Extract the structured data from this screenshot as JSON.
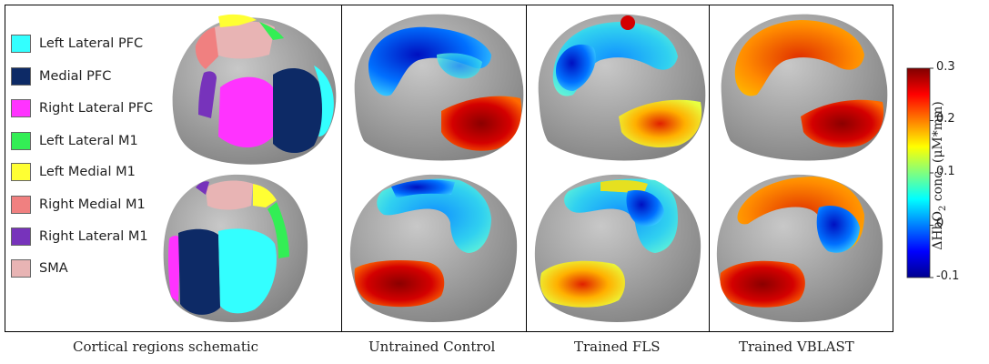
{
  "legend": {
    "items": [
      {
        "label": "Left Lateral PFC",
        "color": "#33ffff"
      },
      {
        "label": "Medial PFC",
        "color": "#0d2a66"
      },
      {
        "label": "Right Lateral PFC",
        "color": "#ff33ff"
      },
      {
        "label": "Left Lateral M1",
        "color": "#33ee55"
      },
      {
        "label": "Left Medial M1",
        "color": "#ffff33"
      },
      {
        "label": "Right Medial M1",
        "color": "#f08080"
      },
      {
        "label": "Right Lateral M1",
        "color": "#7733bb"
      },
      {
        "label": "SMA",
        "color": "#e8b4b4"
      }
    ]
  },
  "captions": {
    "schematic": "Cortical regions schematic",
    "untrained": "Untrained Control",
    "fls": "Trained FLS",
    "vblast": "Trained VBLAST"
  },
  "colorbar": {
    "label_prefix": "ΔHbO",
    "label_sub": "2",
    "label_suffix": " conc. (μM*mm)",
    "ticks": [
      "0.3",
      "0.2",
      "0.1",
      "0",
      "-0.1"
    ],
    "range": [
      -0.1,
      0.3
    ],
    "colormap": "jet"
  },
  "colors": {
    "brain": "#9e9e9e",
    "panel_border": "#000000"
  }
}
